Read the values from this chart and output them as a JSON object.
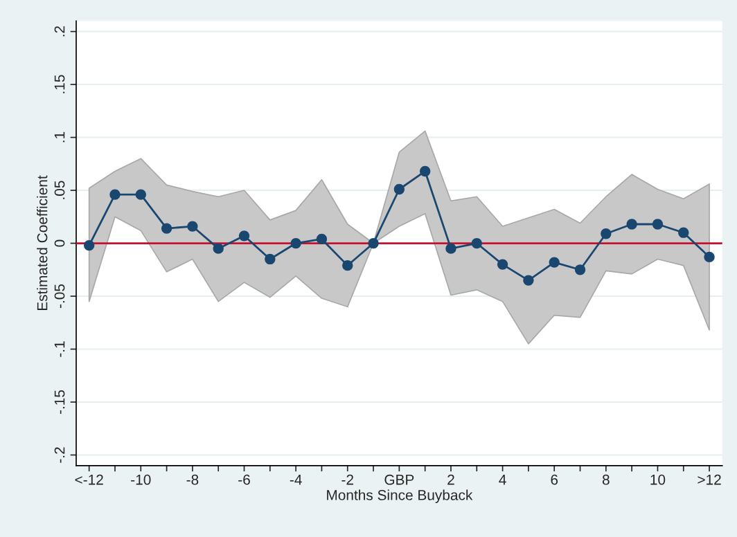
{
  "chart_data": {
    "type": "line",
    "xlabel": "Months Since Buyback",
    "ylabel": "Estimated Coefficient",
    "categories": [
      "<-12",
      null,
      "-10",
      null,
      "-8",
      null,
      "-6",
      null,
      "-4",
      null,
      "-2",
      null,
      "GBP",
      null,
      "2",
      null,
      "4",
      null,
      "6",
      null,
      "8",
      null,
      "10",
      null,
      ">12"
    ],
    "series": [
      {
        "color": "#1a476f",
        "values": [
          -0.002,
          0.046,
          0.046,
          0.014,
          0.016,
          -0.005,
          0.007,
          -0.015,
          0.0,
          0.004,
          -0.021,
          0.0,
          0.051,
          0.068,
          -0.005,
          0.0,
          -0.02,
          -0.035,
          -0.018,
          -0.025,
          0.009,
          0.018,
          0.018,
          0.01,
          -0.013
        ],
        "upper": [
          0.052,
          0.068,
          0.08,
          0.055,
          0.049,
          0.044,
          0.05,
          0.022,
          0.031,
          0.06,
          0.018,
          0.0,
          0.086,
          0.106,
          0.04,
          0.044,
          0.016,
          0.024,
          0.032,
          0.019,
          0.044,
          0.065,
          0.051,
          0.042,
          0.056
        ],
        "lower": [
          -0.055,
          0.025,
          0.012,
          -0.027,
          -0.015,
          -0.055,
          -0.037,
          -0.051,
          -0.031,
          -0.052,
          -0.06,
          0.0,
          0.016,
          0.028,
          -0.049,
          -0.044,
          -0.055,
          -0.095,
          -0.068,
          -0.07,
          -0.026,
          -0.029,
          -0.015,
          -0.021,
          -0.082
        ]
      }
    ],
    "ylim": [
      -0.21,
      0.21
    ],
    "yticks": [
      {
        "value": -0.2,
        "label": "-.2"
      },
      {
        "value": -0.15,
        "label": "-.15"
      },
      {
        "value": -0.1,
        "label": "-.1"
      },
      {
        "value": -0.05,
        "label": "-.05"
      },
      0,
      {
        "value": 0.05,
        "label": ".05"
      },
      {
        "value": 0.1,
        "label": ".1"
      },
      {
        "value": 0.15,
        "label": ".15"
      },
      {
        "value": 0.2,
        "label": ".2"
      }
    ],
    "ref_lines": [
      {
        "axis": "y",
        "value": 0,
        "color": "#c8102e",
        "line_style": "solid"
      }
    ],
    "grid": "y",
    "marker": "circle",
    "line_style": "solid"
  }
}
